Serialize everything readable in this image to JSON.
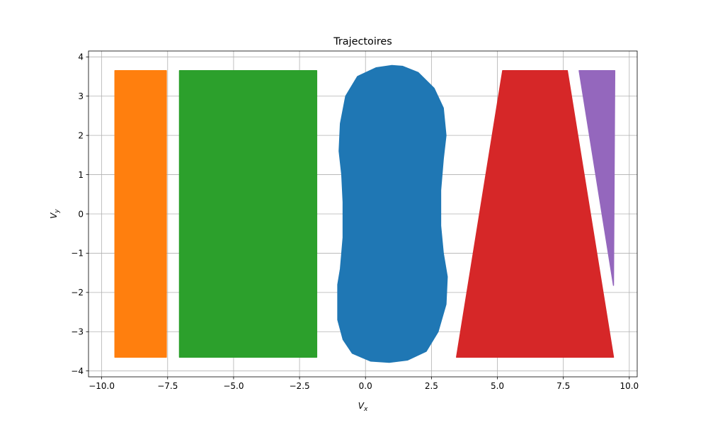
{
  "chart_data": {
    "type": "area",
    "title": "Trajectoires",
    "xlabel": "V",
    "xlabel_sub": "x",
    "ylabel": "V",
    "ylabel_sub": "y",
    "xlim": [
      -10.5,
      10.3
    ],
    "ylim": [
      -4.15,
      4.15
    ],
    "grid": true,
    "x_ticks": [
      -10.0,
      -7.5,
      -5.0,
      -2.5,
      0.0,
      2.5,
      5.0,
      7.5,
      10.0
    ],
    "x_tick_labels": [
      "−10.0",
      "−7.5",
      "−5.0",
      "−2.5",
      "0.0",
      "2.5",
      "5.0",
      "7.5",
      "10.0"
    ],
    "y_ticks": [
      -4,
      -3,
      -2,
      -1,
      0,
      1,
      2,
      3,
      4
    ],
    "y_tick_labels": [
      "−4",
      "−3",
      "−2",
      "−1",
      "0",
      "1",
      "2",
      "3",
      "4"
    ],
    "series": [
      {
        "color": "#1f77b4",
        "points": [
          [
            1.0,
            3.78
          ],
          [
            0.4,
            3.72
          ],
          [
            -0.3,
            3.5
          ],
          [
            -0.75,
            3.0
          ],
          [
            -0.95,
            2.3
          ],
          [
            -1.0,
            1.6
          ],
          [
            -0.9,
            1.0
          ],
          [
            -0.85,
            0.3
          ],
          [
            -0.85,
            -0.6
          ],
          [
            -0.95,
            -1.4
          ],
          [
            -1.05,
            -1.8
          ],
          [
            -1.05,
            -2.7
          ],
          [
            -0.85,
            -3.2
          ],
          [
            -0.5,
            -3.55
          ],
          [
            0.2,
            -3.75
          ],
          [
            0.9,
            -3.78
          ],
          [
            1.6,
            -3.72
          ],
          [
            2.3,
            -3.5
          ],
          [
            2.75,
            -3.0
          ],
          [
            3.05,
            -2.3
          ],
          [
            3.1,
            -1.6
          ],
          [
            2.95,
            -1.0
          ],
          [
            2.85,
            -0.3
          ],
          [
            2.85,
            0.6
          ],
          [
            2.95,
            1.4
          ],
          [
            3.05,
            2.0
          ],
          [
            2.95,
            2.7
          ],
          [
            2.6,
            3.2
          ],
          [
            2.0,
            3.6
          ],
          [
            1.4,
            3.76
          ]
        ]
      },
      {
        "color": "#ff7f0e",
        "points": [
          [
            -9.5,
            3.65
          ],
          [
            -7.55,
            3.65
          ],
          [
            -7.55,
            -3.65
          ],
          [
            -9.5,
            -3.65
          ]
        ]
      },
      {
        "color": "#2ca02c",
        "points": [
          [
            -7.05,
            3.65
          ],
          [
            -1.85,
            3.65
          ],
          [
            -1.85,
            -3.65
          ],
          [
            -7.05,
            -3.65
          ]
        ]
      },
      {
        "color": "#d62728",
        "points": [
          [
            5.2,
            3.65
          ],
          [
            7.65,
            3.65
          ],
          [
            9.4,
            -3.65
          ],
          [
            3.45,
            -3.65
          ]
        ]
      },
      {
        "color": "#9467bd",
        "points": [
          [
            8.1,
            3.65
          ],
          [
            9.45,
            3.65
          ],
          [
            9.4,
            -1.82
          ]
        ]
      }
    ]
  }
}
